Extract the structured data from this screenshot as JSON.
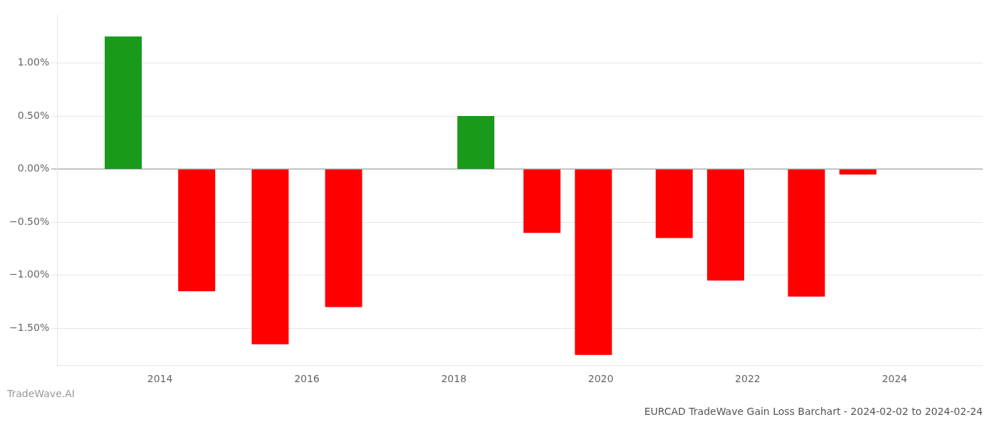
{
  "chart_data": {
    "type": "bar",
    "title": "EURCAD TradeWave Gain Loss Barchart - 2024-02-02 to 2024-02-24",
    "annotations": [
      "TradeWave.AI"
    ],
    "x": [
      2013.5,
      2014.5,
      2015.5,
      2016.5,
      2018.3,
      2019.2,
      2019.9,
      2021.0,
      2021.7,
      2022.8,
      2023.5
    ],
    "values": [
      1.25,
      -1.15,
      -1.65,
      -1.3,
      0.5,
      -0.6,
      -1.75,
      -0.65,
      -1.05,
      -1.2,
      -0.05
    ],
    "colors": [
      "#1a9a1a",
      "#FF0000",
      "#FF0000",
      "#FF0000",
      "#1a9a1a",
      "#FF0000",
      "#FF0000",
      "#FF0000",
      "#FF0000",
      "#FF0000",
      "#FF0000"
    ],
    "xlim": [
      2012.6,
      2025.2
    ],
    "xticks": [
      2014,
      2016,
      2018,
      2020,
      2022,
      2024
    ],
    "ylim": [
      -1.85,
      1.45
    ],
    "yticks": [
      {
        "value": -1.5,
        "label": "−1.50%"
      },
      {
        "value": -1.0,
        "label": "−1.00%"
      },
      {
        "value": -0.5,
        "label": "−0.50%"
      },
      {
        "value": 0.0,
        "label": "0.00%"
      },
      {
        "value": 0.5,
        "label": "0.50%"
      },
      {
        "value": 1.0,
        "label": "1.00%"
      }
    ],
    "grid": true
  }
}
